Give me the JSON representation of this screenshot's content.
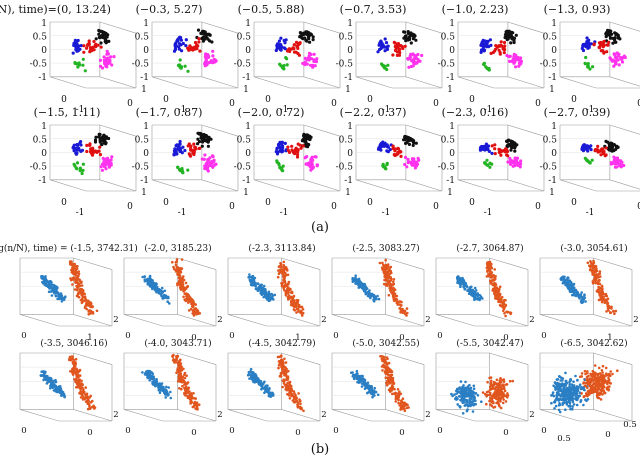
{
  "figure": {
    "part_a": {
      "label": "(a)",
      "first_title_prefix": "(log(n/N), time)=",
      "ticks": {
        "z": [
          "1",
          "0.5",
          "0",
          "-0.5",
          "-1"
        ],
        "x": [
          "0",
          "-1"
        ],
        "y": [
          "0",
          "1"
        ]
      },
      "series_colors": {
        "blue": "#1a1ad6",
        "black": "#111111",
        "red": "#e01010",
        "magenta": "#ff33ee",
        "green": "#22b422"
      },
      "panels": [
        {
          "title": "(0, 13.24)"
        },
        {
          "title": "(−0.3, 5.27)"
        },
        {
          "title": "(−0.5, 5.88)"
        },
        {
          "title": "(−0.7, 3.53)"
        },
        {
          "title": "(−1.0, 2.23)"
        },
        {
          "title": "(−1.3, 0.93)"
        },
        {
          "title": "(−1.5, 1.11)"
        },
        {
          "title": "(−1.7, 0.87)"
        },
        {
          "title": "(−2.0, 0.72)"
        },
        {
          "title": "(−2.2, 0.37)"
        },
        {
          "title": "(−2.3, 0.16)"
        },
        {
          "title": "(−2.7, 0.39)"
        }
      ]
    },
    "part_b": {
      "label": "(b)",
      "first_title_prefix": "(log(n/N), time) = ",
      "ticks": {
        "x": [
          "0"
        ],
        "y": [
          "0",
          "2"
        ],
        "y_alt": [
          "1",
          "2"
        ],
        "last": [
          "0",
          "0.5",
          "0",
          "0.5"
        ]
      },
      "series_colors": {
        "blue": "#2a7fc4",
        "orange": "#e0561e"
      },
      "panels": [
        {
          "title": "(-1.5, 3742.31)"
        },
        {
          "title": "(-2.0, 3185.23)"
        },
        {
          "title": "(-2.3, 3113.84)"
        },
        {
          "title": "(-2.5, 3083.27)"
        },
        {
          "title": "(-2.7, 3064.87)"
        },
        {
          "title": "(-3.0, 3054.61)"
        },
        {
          "title": "(-3.5, 3046.16)"
        },
        {
          "title": "(-4.0, 3043.71)"
        },
        {
          "title": "(-4.5, 3042.79)"
        },
        {
          "title": "(-5.0, 3042.55)"
        },
        {
          "title": "(-5.5, 3042.47)"
        },
        {
          "title": "(-6.5, 3042.62)"
        }
      ]
    }
  },
  "chart_data": [
    {
      "type": "scatter",
      "title": "",
      "panel_titles": [
        "(0, 13.24)",
        "(−0.3, 5.27)",
        "(−0.5, 5.88)",
        "(−0.7, 3.53)",
        "(−1.0, 2.23)",
        "(−1.3, 0.93)",
        "(−1.5, 1.11)",
        "(−1.7, 0.87)",
        "(−2.0, 0.72)",
        "(−2.2, 0.37)",
        "(−2.3, 0.16)",
        "(−2.7, 0.39)"
      ],
      "zlim": [
        -1,
        1
      ],
      "xlim": [
        -1,
        0
      ],
      "ylim": [
        0,
        1
      ],
      "z_ticks": [
        1,
        0.5,
        0,
        -0.5,
        -1
      ],
      "grid": true,
      "series": [
        {
          "color": "blue"
        },
        {
          "color": "black"
        },
        {
          "color": "red"
        },
        {
          "color": "magenta"
        },
        {
          "color": "green"
        }
      ]
    },
    {
      "type": "scatter",
      "title": "",
      "panel_titles": [
        "(-1.5, 3742.31)",
        "(-2.0, 3185.23)",
        "(-2.3, 3113.84)",
        "(-2.5, 3083.27)",
        "(-2.7, 3064.87)",
        "(-3.0, 3054.61)",
        "(-3.5, 3046.16)",
        "(-4.0, 3043.71)",
        "(-4.5, 3042.79)",
        "(-5.0, 3042.55)",
        "(-5.5, 3042.47)",
        "(-6.5, 3042.62)"
      ],
      "grid": true,
      "series": [
        {
          "color": "blue"
        },
        {
          "color": "orange"
        }
      ]
    }
  ]
}
